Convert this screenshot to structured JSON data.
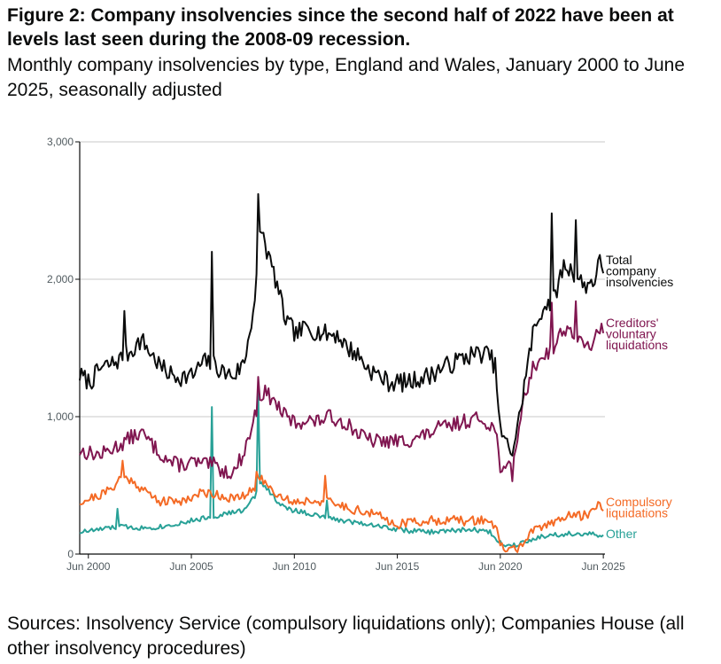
{
  "title": "Figure 2: Company insolvencies since the second half of 2022 have been at levels last seen during the 2008-09 recession.",
  "subtitle": "Monthly company insolvencies by type, England and Wales, January 2000 to June 2025, seasonally adjusted",
  "source": "Sources: Insolvency Service (compulsory liquidations only); Companies House (all other insolvency procedures)",
  "chart_data": {
    "type": "line",
    "x_range": [
      "2000-01",
      "2025-06"
    ],
    "ylim": [
      0,
      3000
    ],
    "y_ticks": [
      {
        "v": 0,
        "t": "0"
      },
      {
        "v": 1000,
        "t": "1,000"
      },
      {
        "v": 2000,
        "t": "2,000"
      },
      {
        "v": 3000,
        "t": "3,000"
      }
    ],
    "x_ticks": [
      {
        "year": 2000.42,
        "t": "Jun 2000"
      },
      {
        "year": 2005.42,
        "t": "Jun 2005"
      },
      {
        "year": 2010.42,
        "t": "Jun 2010"
      },
      {
        "year": 2015.42,
        "t": "Jun 2015"
      },
      {
        "year": 2020.42,
        "t": "Jun 2020"
      },
      {
        "year": 2025.42,
        "t": "Jun 2025"
      }
    ],
    "grid": true,
    "legend": "direct labels at right end of lines",
    "series": [
      {
        "name": "Total company insolvencies",
        "label_lines": [
          "Total",
          "company",
          "insolvencies"
        ],
        "color": "#0b0c0c",
        "anchors": [
          [
            2000.0,
            1300
          ],
          [
            2000.5,
            1250
          ],
          [
            2001.0,
            1350
          ],
          [
            2001.5,
            1380
          ],
          [
            2002.0,
            1420
          ],
          [
            2002.5,
            1480
          ],
          [
            2003.0,
            1560
          ],
          [
            2003.5,
            1450
          ],
          [
            2004.0,
            1350
          ],
          [
            2004.5,
            1300
          ],
          [
            2005.0,
            1290
          ],
          [
            2005.5,
            1300
          ],
          [
            2006.0,
            1400
          ],
          [
            2006.5,
            1380
          ],
          [
            2007.0,
            1320
          ],
          [
            2007.5,
            1300
          ],
          [
            2008.0,
            1400
          ],
          [
            2008.5,
            1850
          ],
          [
            2008.8,
            2400
          ],
          [
            2009.0,
            2250
          ],
          [
            2009.5,
            2000
          ],
          [
            2010.0,
            1700
          ],
          [
            2010.5,
            1600
          ],
          [
            2011.0,
            1650
          ],
          [
            2011.5,
            1620
          ],
          [
            2012.0,
            1600
          ],
          [
            2012.5,
            1600
          ],
          [
            2013.0,
            1500
          ],
          [
            2013.5,
            1450
          ],
          [
            2014.0,
            1350
          ],
          [
            2014.5,
            1300
          ],
          [
            2015.0,
            1250
          ],
          [
            2015.5,
            1250
          ],
          [
            2016.0,
            1250
          ],
          [
            2016.5,
            1280
          ],
          [
            2017.0,
            1300
          ],
          [
            2017.5,
            1350
          ],
          [
            2018.0,
            1380
          ],
          [
            2018.5,
            1420
          ],
          [
            2019.0,
            1450
          ],
          [
            2019.5,
            1460
          ],
          [
            2019.9,
            1450
          ],
          [
            2020.2,
            1350
          ],
          [
            2020.4,
            900
          ],
          [
            2020.7,
            800
          ],
          [
            2021.0,
            750
          ],
          [
            2021.3,
            950
          ],
          [
            2021.6,
            1250
          ],
          [
            2022.0,
            1600
          ],
          [
            2022.5,
            1800
          ],
          [
            2023.0,
            1850
          ],
          [
            2023.5,
            2100
          ],
          [
            2024.0,
            2050
          ],
          [
            2024.5,
            1950
          ],
          [
            2025.0,
            2000
          ],
          [
            2025.3,
            2150
          ],
          [
            2025.42,
            2050
          ]
        ],
        "noise": 70,
        "seed": 7,
        "spikes": [
          [
            2006.42,
            2200
          ],
          [
            2008.67,
            2620
          ],
          [
            2002.2,
            1770
          ],
          [
            2022.9,
            2480
          ],
          [
            2024.1,
            2430
          ]
        ]
      },
      {
        "name": "Creditors' voluntary liquidations",
        "label_lines": [
          "Creditors'",
          "voluntary",
          "liquidations"
        ],
        "color": "#801650",
        "anchors": [
          [
            2000.0,
            750
          ],
          [
            2001.0,
            720
          ],
          [
            2001.5,
            760
          ],
          [
            2002.0,
            800
          ],
          [
            2002.5,
            850
          ],
          [
            2003.0,
            880
          ],
          [
            2003.5,
            800
          ],
          [
            2004.0,
            720
          ],
          [
            2004.5,
            660
          ],
          [
            2005.0,
            650
          ],
          [
            2005.5,
            670
          ],
          [
            2006.0,
            650
          ],
          [
            2006.5,
            650
          ],
          [
            2007.0,
            600
          ],
          [
            2007.5,
            600
          ],
          [
            2008.0,
            750
          ],
          [
            2008.5,
            1000
          ],
          [
            2008.8,
            1150
          ],
          [
            2009.0,
            1180
          ],
          [
            2009.5,
            1100
          ],
          [
            2010.0,
            1000
          ],
          [
            2010.5,
            950
          ],
          [
            2011.0,
            980
          ],
          [
            2011.5,
            960
          ],
          [
            2012.0,
            1000
          ],
          [
            2012.5,
            980
          ],
          [
            2013.0,
            950
          ],
          [
            2013.5,
            880
          ],
          [
            2014.0,
            830
          ],
          [
            2014.5,
            820
          ],
          [
            2015.0,
            820
          ],
          [
            2015.5,
            820
          ],
          [
            2016.0,
            830
          ],
          [
            2016.5,
            850
          ],
          [
            2017.0,
            880
          ],
          [
            2017.5,
            920
          ],
          [
            2018.0,
            930
          ],
          [
            2018.5,
            960
          ],
          [
            2019.0,
            980
          ],
          [
            2019.5,
            980
          ],
          [
            2019.9,
            950
          ],
          [
            2020.2,
            900
          ],
          [
            2020.4,
            650
          ],
          [
            2020.7,
            600
          ],
          [
            2021.0,
            650
          ],
          [
            2021.3,
            900
          ],
          [
            2021.6,
            1150
          ],
          [
            2022.0,
            1350
          ],
          [
            2022.5,
            1450
          ],
          [
            2023.0,
            1500
          ],
          [
            2023.5,
            1650
          ],
          [
            2024.0,
            1600
          ],
          [
            2024.5,
            1500
          ],
          [
            2025.0,
            1550
          ],
          [
            2025.3,
            1650
          ],
          [
            2025.42,
            1580
          ]
        ],
        "noise": 55,
        "seed": 13,
        "spikes": [
          [
            2008.67,
            1290
          ],
          [
            2021.0,
            530
          ],
          [
            2022.9,
            1830
          ],
          [
            2024.1,
            1840
          ]
        ]
      },
      {
        "name": "Compulsory liquidations",
        "label_lines": [
          "Compulsory",
          "liquidations"
        ],
        "color": "#f46a25",
        "anchors": [
          [
            2000.0,
            380
          ],
          [
            2001.0,
            430
          ],
          [
            2001.5,
            470
          ],
          [
            2002.0,
            560
          ],
          [
            2002.5,
            540
          ],
          [
            2003.0,
            480
          ],
          [
            2003.5,
            420
          ],
          [
            2004.0,
            380
          ],
          [
            2005.0,
            390
          ],
          [
            2005.5,
            420
          ],
          [
            2006.0,
            450
          ],
          [
            2006.5,
            440
          ],
          [
            2007.0,
            420
          ],
          [
            2007.5,
            400
          ],
          [
            2008.0,
            420
          ],
          [
            2008.5,
            480
          ],
          [
            2008.8,
            560
          ],
          [
            2009.0,
            520
          ],
          [
            2009.5,
            450
          ],
          [
            2010.0,
            400
          ],
          [
            2010.5,
            380
          ],
          [
            2011.0,
            390
          ],
          [
            2011.5,
            390
          ],
          [
            2012.0,
            380
          ],
          [
            2012.5,
            360
          ],
          [
            2013.0,
            340
          ],
          [
            2013.5,
            320
          ],
          [
            2014.0,
            300
          ],
          [
            2014.5,
            280
          ],
          [
            2015.0,
            240
          ],
          [
            2015.5,
            220
          ],
          [
            2016.0,
            230
          ],
          [
            2016.5,
            240
          ],
          [
            2017.0,
            240
          ],
          [
            2017.5,
            250
          ],
          [
            2018.0,
            250
          ],
          [
            2018.5,
            240
          ],
          [
            2019.0,
            240
          ],
          [
            2019.5,
            250
          ],
          [
            2019.9,
            240
          ],
          [
            2020.2,
            200
          ],
          [
            2020.4,
            60
          ],
          [
            2020.7,
            30
          ],
          [
            2021.0,
            40
          ],
          [
            2021.3,
            40
          ],
          [
            2021.6,
            100
          ],
          [
            2022.0,
            160
          ],
          [
            2022.5,
            200
          ],
          [
            2023.0,
            240
          ],
          [
            2023.5,
            270
          ],
          [
            2024.0,
            280
          ],
          [
            2024.5,
            280
          ],
          [
            2025.0,
            330
          ],
          [
            2025.3,
            360
          ],
          [
            2025.42,
            340
          ]
        ],
        "noise": 35,
        "seed": 21,
        "spikes": [
          [
            2002.1,
            680
          ],
          [
            2008.6,
            600
          ],
          [
            2011.9,
            570
          ],
          [
            2025.2,
            380
          ]
        ]
      },
      {
        "name": "Other",
        "label_lines": [
          "Other"
        ],
        "color": "#28a197",
        "anchors": [
          [
            2000.0,
            160
          ],
          [
            2001.0,
            180
          ],
          [
            2002.0,
            200
          ],
          [
            2003.0,
            190
          ],
          [
            2004.0,
            200
          ],
          [
            2005.0,
            230
          ],
          [
            2006.0,
            260
          ],
          [
            2007.0,
            290
          ],
          [
            2008.0,
            320
          ],
          [
            2008.5,
            420
          ],
          [
            2008.8,
            520
          ],
          [
            2009.0,
            500
          ],
          [
            2009.5,
            400
          ],
          [
            2010.0,
            330
          ],
          [
            2011.0,
            300
          ],
          [
            2012.0,
            260
          ],
          [
            2013.0,
            240
          ],
          [
            2014.0,
            220
          ],
          [
            2015.0,
            190
          ],
          [
            2016.0,
            170
          ],
          [
            2017.0,
            160
          ],
          [
            2018.0,
            170
          ],
          [
            2019.0,
            180
          ],
          [
            2019.9,
            160
          ],
          [
            2020.2,
            120
          ],
          [
            2020.5,
            70
          ],
          [
            2021.0,
            60
          ],
          [
            2021.5,
            90
          ],
          [
            2022.0,
            110
          ],
          [
            2022.5,
            130
          ],
          [
            2023.0,
            140
          ],
          [
            2024.0,
            150
          ],
          [
            2025.0,
            140
          ],
          [
            2025.42,
            130
          ]
        ],
        "noise": 18,
        "seed": 33,
        "spikes": [
          [
            2006.42,
            1070
          ],
          [
            2008.67,
            1200
          ],
          [
            2001.8,
            330
          ],
          [
            2012.0,
            390
          ]
        ]
      }
    ]
  }
}
